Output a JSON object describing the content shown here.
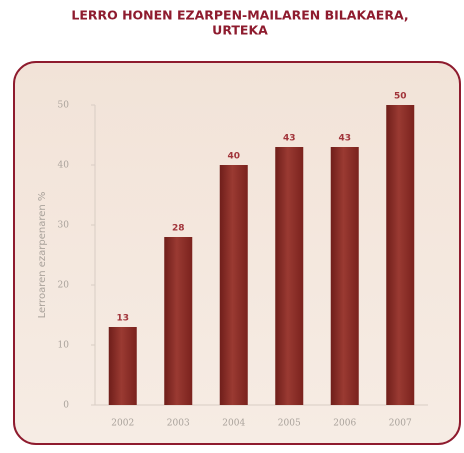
{
  "chart_data": {
    "type": "bar",
    "title": [
      "LERRO HONEN EZARPEN-MAILAREN BILAKAERA,",
      "URTEKA"
    ],
    "y_label": "Lerroaren ezarpenaren %",
    "categories": [
      "2002",
      "2003",
      "2004",
      "2005",
      "2006",
      "2007"
    ],
    "values": [
      13,
      28,
      40,
      43,
      43,
      50
    ],
    "color": "#8a2a24",
    "ylim": [
      0,
      50
    ],
    "yticks": [
      0,
      10,
      20,
      30,
      40,
      50
    ],
    "grid": false
  }
}
